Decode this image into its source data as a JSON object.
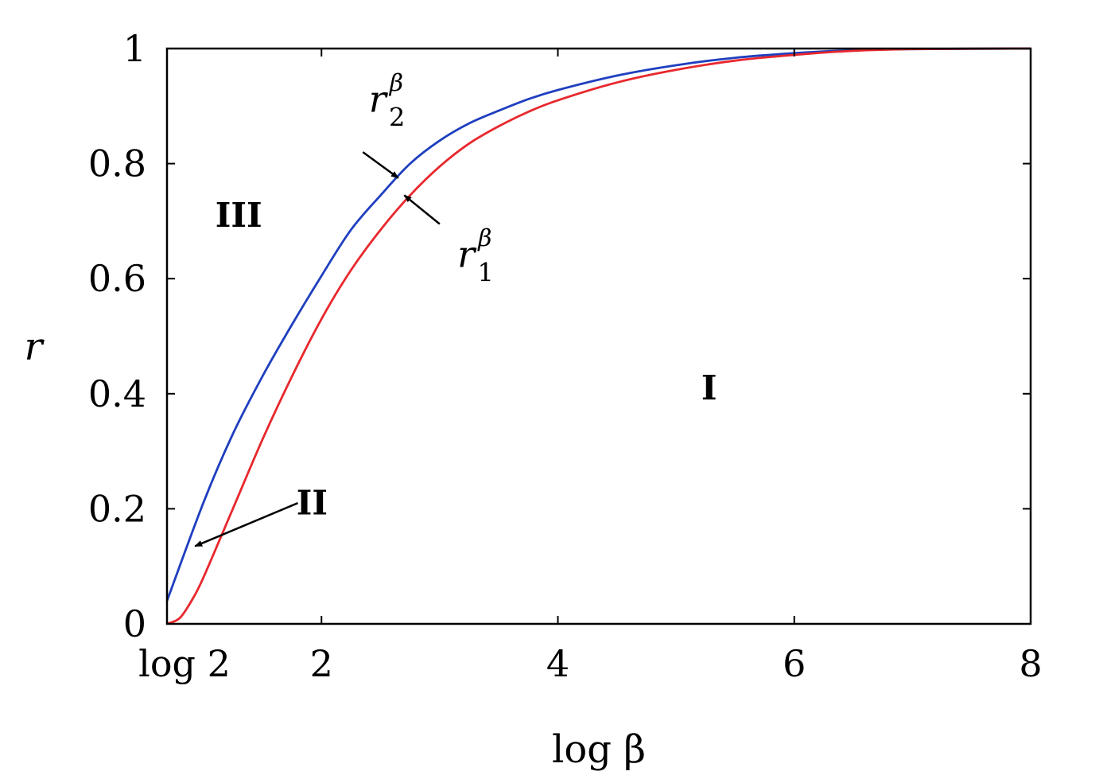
{
  "chart_data": {
    "type": "line",
    "title": "",
    "xlabel": "log β",
    "ylabel": "r",
    "xlim": [
      0.693,
      8
    ],
    "ylim": [
      0,
      1
    ],
    "x_ticks": [
      {
        "value": 0.693,
        "label": "log 2"
      },
      {
        "value": 2,
        "label": "2"
      },
      {
        "value": 4,
        "label": "4"
      },
      {
        "value": 6,
        "label": "6"
      },
      {
        "value": 8,
        "label": "8"
      }
    ],
    "y_ticks": [
      {
        "value": 0,
        "label": "0"
      },
      {
        "value": 0.2,
        "label": "0.2"
      },
      {
        "value": 0.4,
        "label": "0.4"
      },
      {
        "value": 0.6,
        "label": "0.6"
      },
      {
        "value": 0.8,
        "label": "0.8"
      },
      {
        "value": 1,
        "label": "1"
      }
    ],
    "grid": false,
    "series": [
      {
        "name": "r_2^β",
        "color": "#1f3fbf",
        "x": [
          0.693,
          1.0,
          1.25,
          1.5,
          1.75,
          2.0,
          2.25,
          2.5,
          2.75,
          3.0,
          3.25,
          3.5,
          3.75,
          4.0,
          4.5,
          5.0,
          5.5,
          6.0,
          6.5,
          7.0,
          8.0
        ],
        "y": [
          0.04,
          0.21,
          0.33,
          0.43,
          0.52,
          0.605,
          0.685,
          0.745,
          0.8,
          0.84,
          0.87,
          0.892,
          0.912,
          0.928,
          0.953,
          0.971,
          0.984,
          0.992,
          0.997,
          0.999,
          1.0
        ]
      },
      {
        "name": "r_1^β",
        "color": "#e8282d",
        "x": [
          0.693,
          0.8,
          0.9,
          1.0,
          1.25,
          1.5,
          1.75,
          2.0,
          2.25,
          2.5,
          2.75,
          3.0,
          3.25,
          3.5,
          3.75,
          4.0,
          4.5,
          5.0,
          5.5,
          6.0,
          6.5,
          7.0,
          8.0
        ],
        "y": [
          0.0,
          0.01,
          0.04,
          0.08,
          0.2,
          0.32,
          0.43,
          0.53,
          0.615,
          0.685,
          0.745,
          0.795,
          0.835,
          0.865,
          0.89,
          0.91,
          0.941,
          0.963,
          0.979,
          0.989,
          0.996,
          0.999,
          1.0
        ]
      }
    ],
    "annotations": [
      {
        "id": "r2",
        "base": "r",
        "sub": "2",
        "sup": "β",
        "text_x": 2.4,
        "text_y": 0.89,
        "arrow_from": [
          2.35,
          0.82
        ],
        "arrow_to": [
          2.65,
          0.775
        ]
      },
      {
        "id": "r1",
        "base": "r",
        "sub": "1",
        "sup": "β",
        "text_x": 3.15,
        "text_y": 0.62,
        "arrow_from": [
          3.0,
          0.695
        ],
        "arrow_to": [
          2.7,
          0.745
        ]
      },
      {
        "id": "II",
        "text": "II",
        "text_x": 1.92,
        "text_y": 0.19,
        "arrow_from": [
          1.8,
          0.21
        ],
        "arrow_to": [
          0.93,
          0.135
        ]
      }
    ],
    "regions": [
      {
        "text": "III",
        "x": 1.3,
        "y": 0.69
      },
      {
        "text": "I",
        "x": 5.28,
        "y": 0.39
      }
    ]
  }
}
